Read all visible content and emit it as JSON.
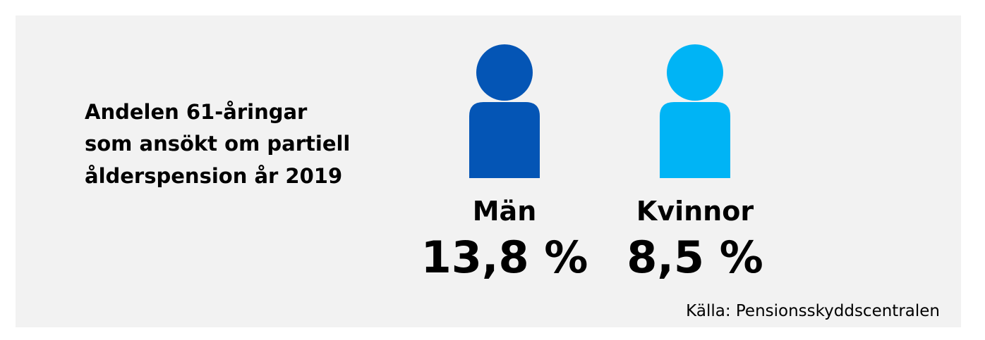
{
  "title_lines": [
    "Andelen 61-åringar",
    "som ansökt om partiell",
    "ålderspension år 2019"
  ],
  "groups": [
    {
      "label": "Män",
      "value": "13,8 %",
      "color": "#0455b5"
    },
    {
      "label": "Kvinnor",
      "value": "8,5 %",
      "color": "#00b4f5"
    }
  ],
  "source": "Källa: Pensionsskyddscentralen"
}
